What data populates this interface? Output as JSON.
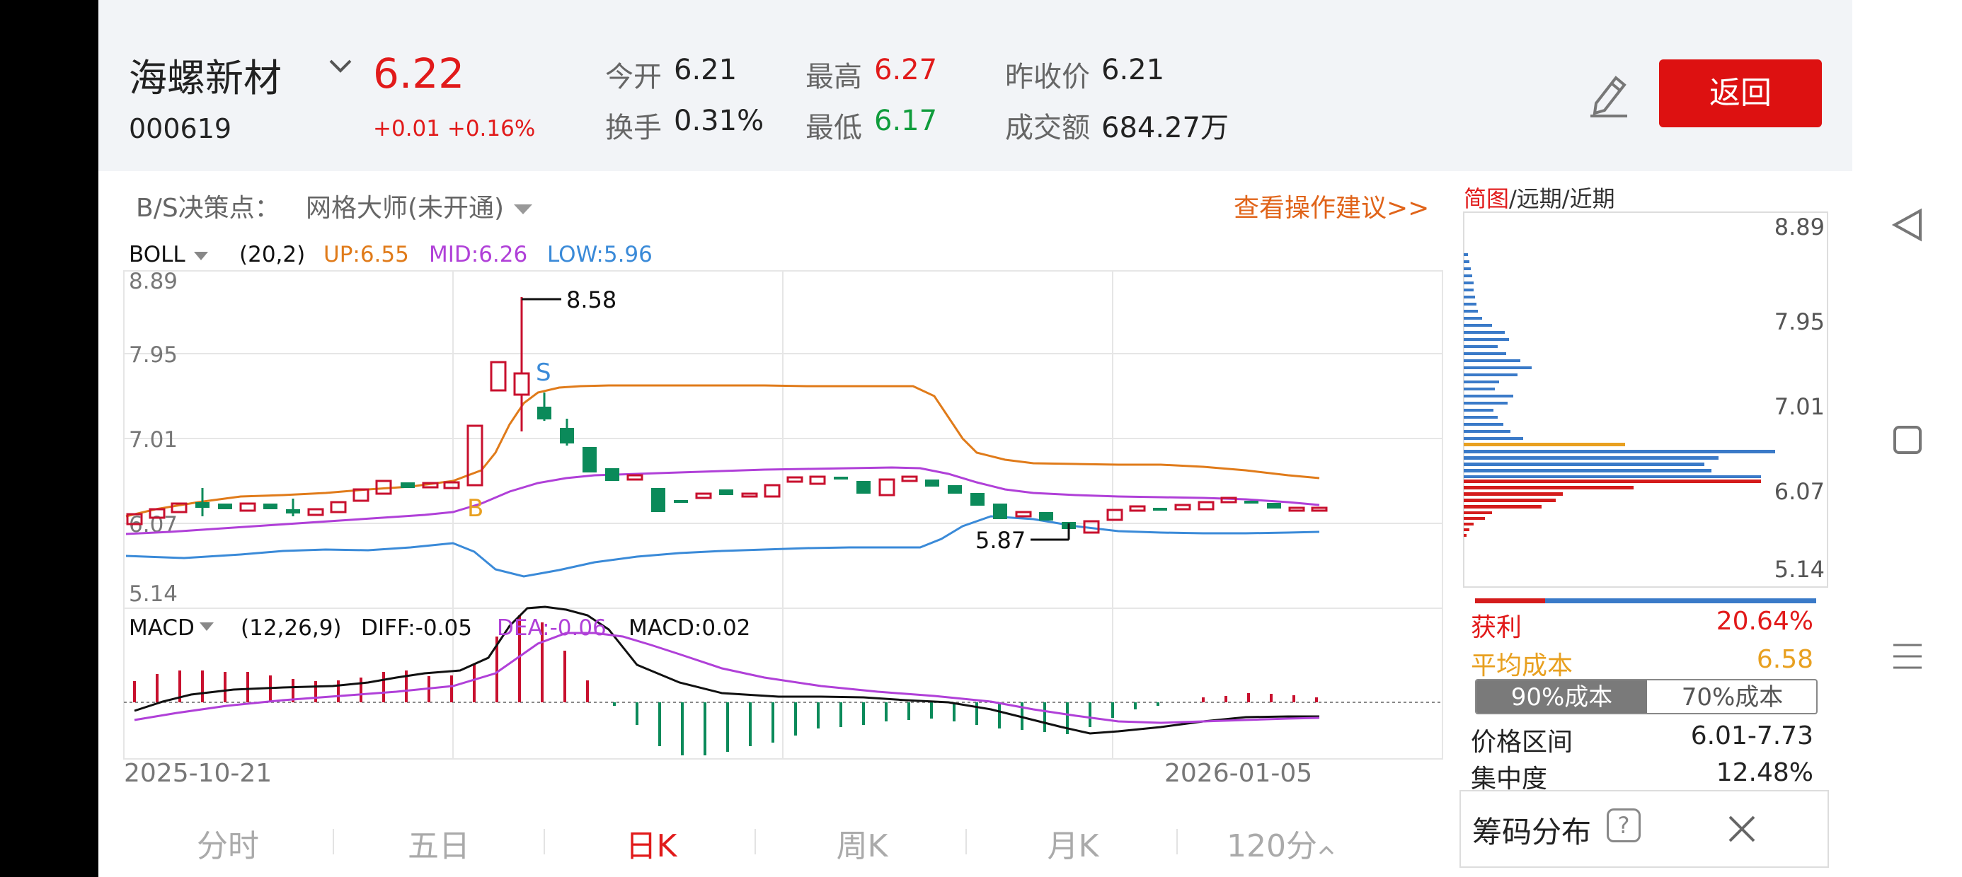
{
  "stock": {
    "name": "海螺新材",
    "code": "000619",
    "price": "6.22",
    "change": "+0.01 +0.16%"
  },
  "quote": {
    "open_label": "今开",
    "open": "6.21",
    "high_label": "最高",
    "high": "6.27",
    "prev_close_label": "昨收价",
    "prev_close": "6.21",
    "turnover_label": "换手",
    "turnover": "0.31%",
    "low_label": "最低",
    "low": "6.17",
    "amount_label": "成交额",
    "amount": "684.27万"
  },
  "toolbar": {
    "back_label": "返回"
  },
  "decision": {
    "label": "B/S决策点：",
    "grid_master": "网格大师(未开通)",
    "advice_link": "查看操作建议>>"
  },
  "boll": {
    "name": "BOLL",
    "params": "(20,2)",
    "up": "UP:6.55",
    "mid": "MID:6.26",
    "low": "LOW:5.96"
  },
  "macd": {
    "name": "MACD",
    "params": "(12,26,9)",
    "diff": "DIFF:-0.05",
    "dea": "DEA:-0.06",
    "macd": "MACD:0.02"
  },
  "price_axis": {
    "ticks": [
      "8.89",
      "7.95",
      "7.01",
      "6.07",
      "5.14"
    ]
  },
  "annotations": {
    "high": "8.58",
    "low": "5.87",
    "buy": "B",
    "sell": "S"
  },
  "dates": {
    "start": "2025-10-21",
    "end": "2026-01-05"
  },
  "period_tabs": [
    "分时",
    "五日",
    "日K",
    "周K",
    "月K",
    "120分"
  ],
  "chip": {
    "header": [
      "简图",
      "/远期/近期"
    ],
    "axis": [
      "8.89",
      "7.95",
      "7.01",
      "6.07",
      "5.14"
    ],
    "profit_label": "获利",
    "profit": "20.64%",
    "avg_cost_label": "平均成本",
    "avg_cost": "6.58",
    "tab_90": "90%成本",
    "tab_70": "70%成本",
    "range_label": "价格区间",
    "range": "6.01-7.73",
    "concentration_label": "集中度",
    "concentration": "12.48%",
    "panel_title": "筹码分布",
    "help_icon": "?",
    "profit_ratio": 0.2064
  },
  "colors": {
    "up": "#c8102e",
    "down": "#0b8a5a",
    "boll_up": "#e07b1a",
    "boll_mid": "#b040d8",
    "boll_low": "#3a8ad8",
    "accent": "#e11a1a",
    "link": "#e0641a"
  },
  "icons": [
    "edit-pencil-icon",
    "chevron-down-icon",
    "help-icon",
    "close-icon",
    "nav-back-icon",
    "nav-home-icon",
    "nav-menu-icon"
  ]
}
